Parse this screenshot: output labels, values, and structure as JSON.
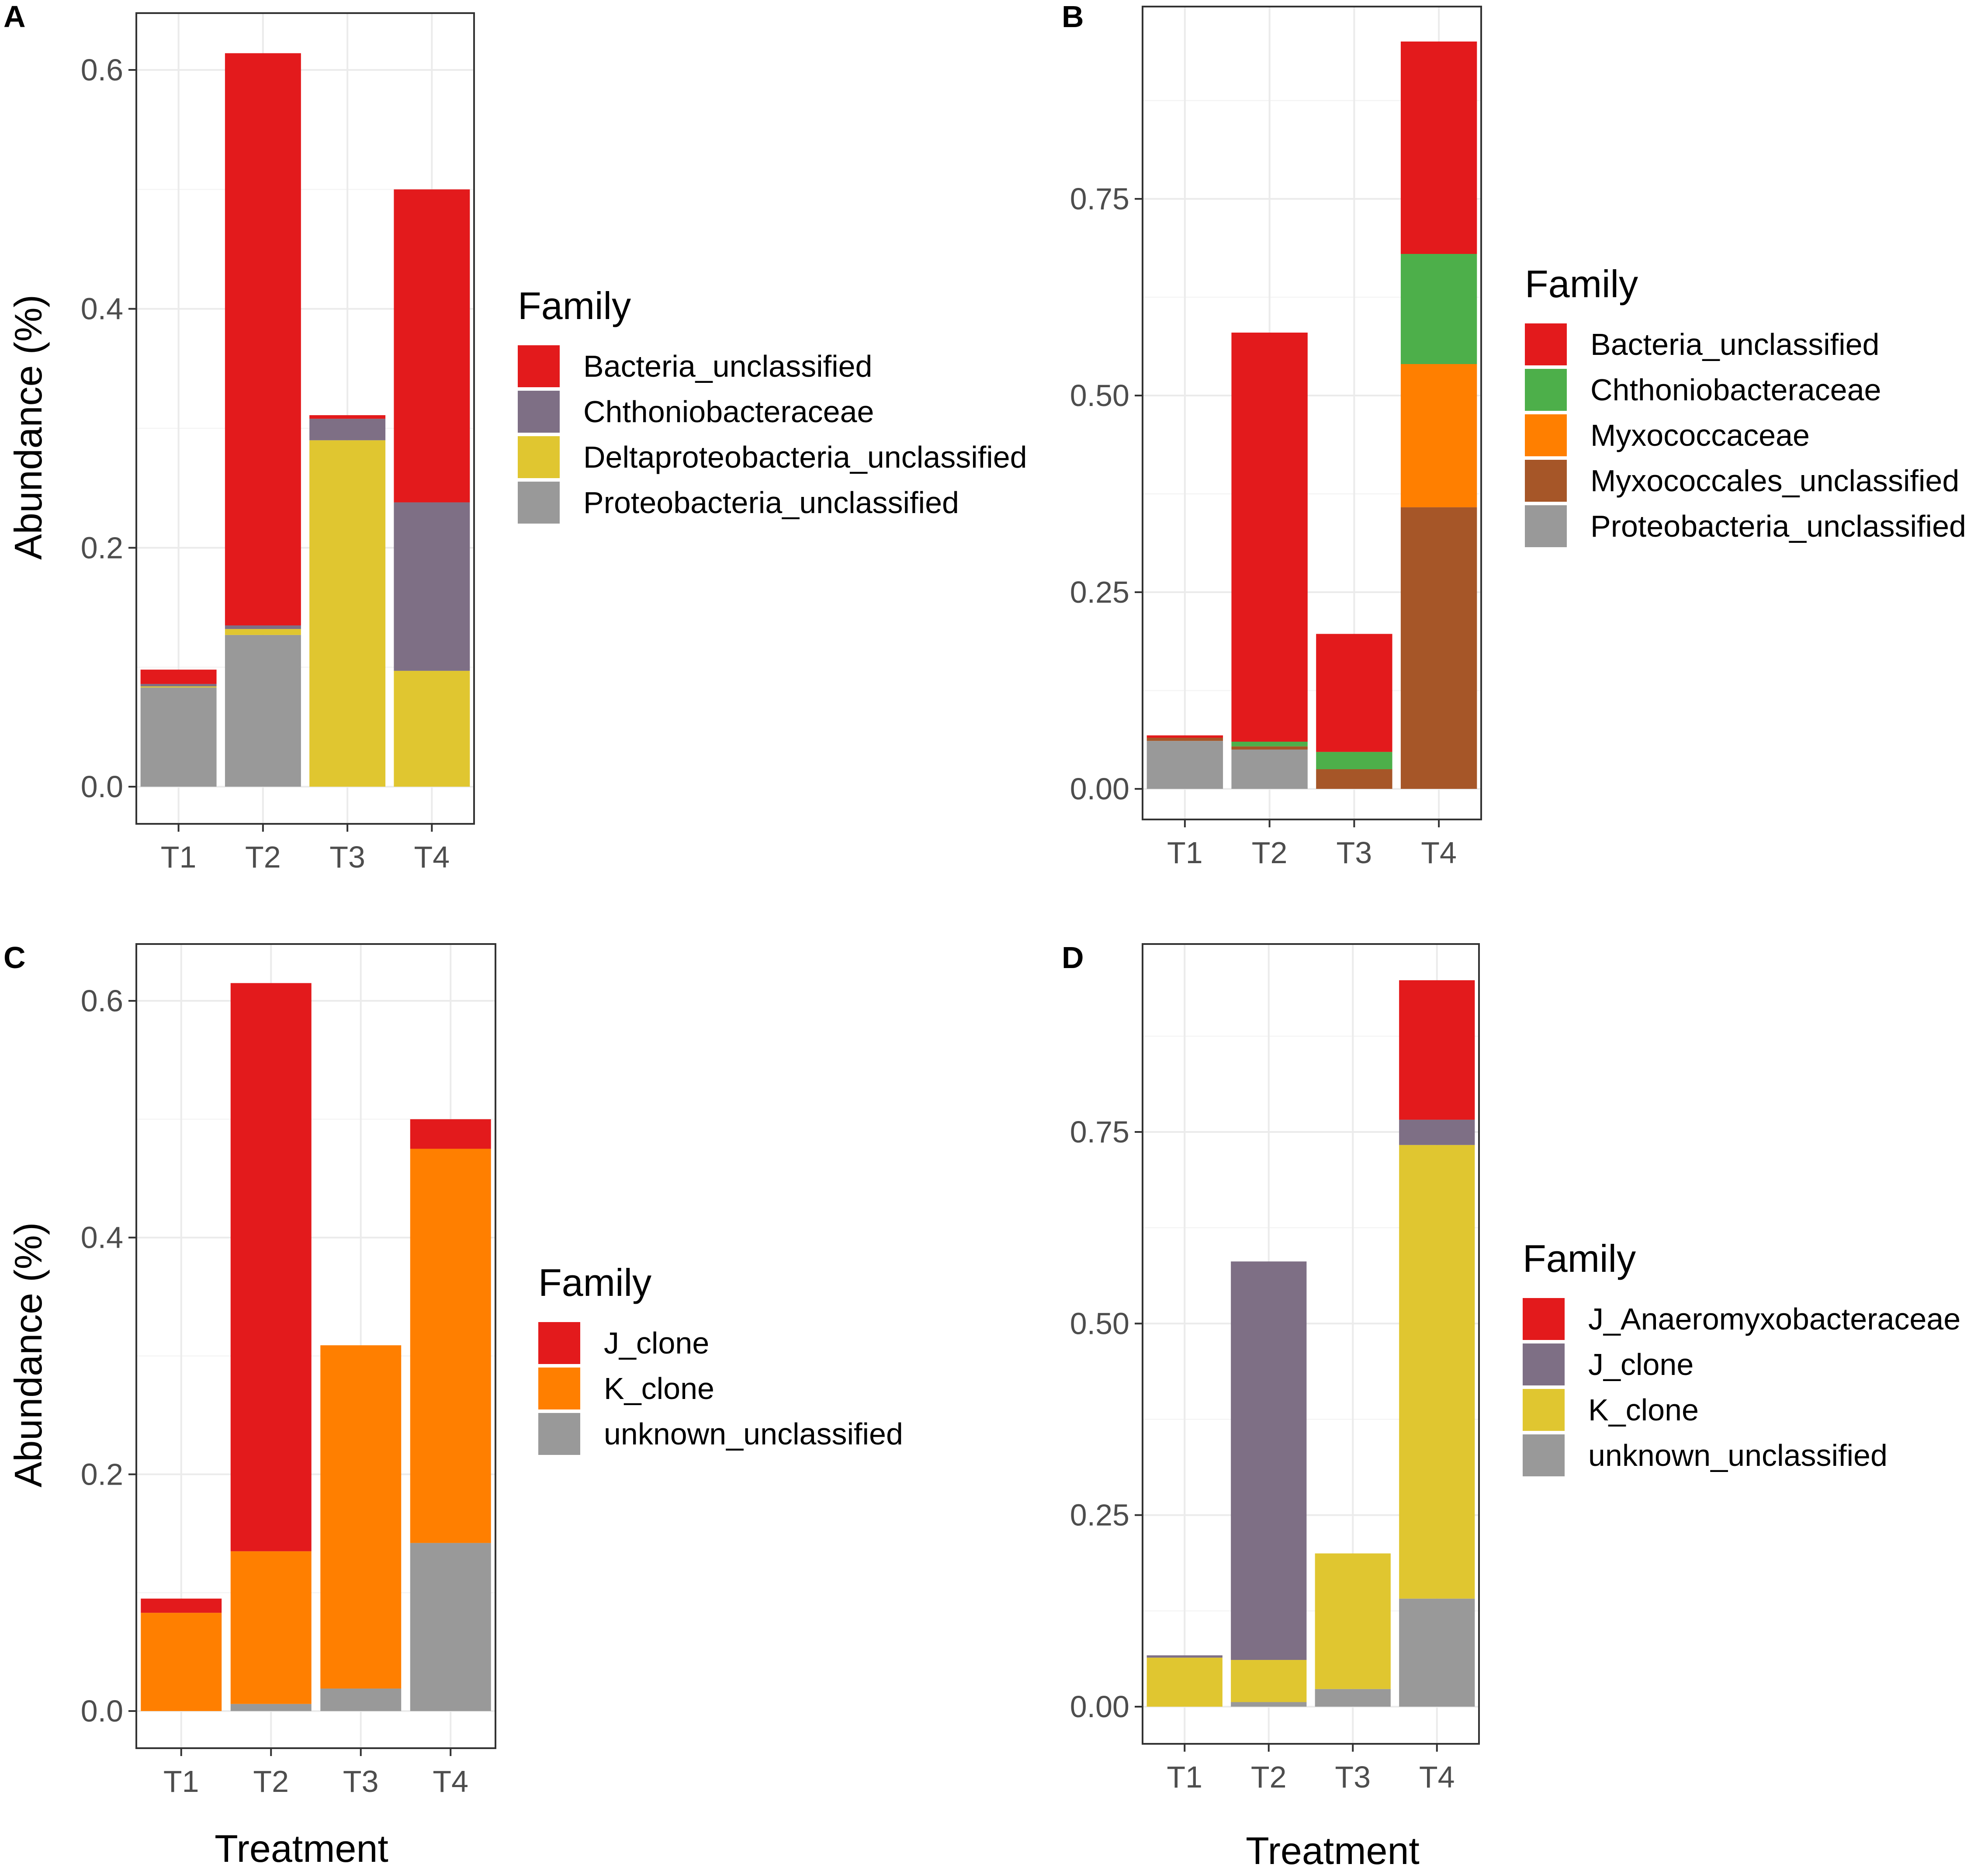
{
  "x_axis_title": "Treatment",
  "y_axis_title": "Abundance (%)",
  "chart_data": [
    {
      "panel": "A",
      "type": "bar",
      "stacked": true,
      "categories": [
        "T1",
        "T2",
        "T3",
        "T4"
      ],
      "ylim": [
        0,
        0.65
      ],
      "yticks": [
        0.0,
        0.2,
        0.4,
        0.6
      ],
      "ytick_labels": [
        "0.0",
        "0.2",
        "0.4",
        "0.6"
      ],
      "ylabel": "Abundance (%)",
      "xlabel": "",
      "legend_title": "Family",
      "series": [
        {
          "name": "Bacteria_unclassified",
          "color": "#e31a1c",
          "values": [
            0.012,
            0.479,
            0.003,
            0.262
          ]
        },
        {
          "name": "Chthoniobacteraceae",
          "color": "#7e6f85",
          "values": [
            0.002,
            0.003,
            0.018,
            0.141
          ]
        },
        {
          "name": "Deltaproteobacteria_unclassified",
          "color": "#e0c630",
          "values": [
            0.001,
            0.005,
            0.29,
            0.097
          ]
        },
        {
          "name": "Proteobacteria_unclassified",
          "color": "#999999",
          "values": [
            0.083,
            0.127,
            0.0,
            0.0
          ]
        }
      ]
    },
    {
      "panel": "B",
      "type": "bar",
      "stacked": true,
      "categories": [
        "T1",
        "T2",
        "T3",
        "T4"
      ],
      "ylim": [
        0,
        0.99
      ],
      "yticks": [
        0.0,
        0.25,
        0.5,
        0.75
      ],
      "ytick_labels": [
        "0.00",
        "0.25",
        "0.50",
        "0.75"
      ],
      "ylabel": "",
      "xlabel": "",
      "legend_title": "Family",
      "series": [
        {
          "name": "Bacteria_unclassified",
          "color": "#e31a1c",
          "values": [
            0.003,
            0.52,
            0.15,
            0.27
          ]
        },
        {
          "name": "Chthoniobacteraceae",
          "color": "#4daf4a",
          "values": [
            0.0,
            0.006,
            0.022,
            0.14
          ]
        },
        {
          "name": "Myxococcaceae",
          "color": "#ff7f00",
          "values": [
            0.0,
            0.0,
            0.0,
            0.182
          ]
        },
        {
          "name": "Myxococcales_unclassified",
          "color": "#a65628",
          "values": [
            0.004,
            0.004,
            0.025,
            0.358
          ]
        },
        {
          "name": "Proteobacteria_unclassified",
          "color": "#999999",
          "values": [
            0.061,
            0.05,
            0.0,
            0.0
          ]
        }
      ]
    },
    {
      "panel": "C",
      "type": "bar",
      "stacked": true,
      "categories": [
        "T1",
        "T2",
        "T3",
        "T4"
      ],
      "ylim": [
        0,
        0.65
      ],
      "yticks": [
        0.0,
        0.2,
        0.4,
        0.6
      ],
      "ytick_labels": [
        "0.0",
        "0.2",
        "0.4",
        "0.6"
      ],
      "ylabel": "Abundance (%)",
      "xlabel": "Treatment",
      "legend_title": "Family",
      "series": [
        {
          "name": "J_clone",
          "color": "#e31a1c",
          "values": [
            0.012,
            0.48,
            0.0,
            0.025
          ]
        },
        {
          "name": "K_clone",
          "color": "#ff7f00",
          "values": [
            0.083,
            0.129,
            0.29,
            0.333
          ]
        },
        {
          "name": "unknown_unclassified",
          "color": "#999999",
          "values": [
            0.0,
            0.006,
            0.019,
            0.142
          ]
        }
      ]
    },
    {
      "panel": "D",
      "type": "bar",
      "stacked": true,
      "categories": [
        "T1",
        "T2",
        "T3",
        "T4"
      ],
      "ylim": [
        0,
        0.99
      ],
      "yticks": [
        0.0,
        0.25,
        0.5,
        0.75
      ],
      "ytick_labels": [
        "0.00",
        "0.25",
        "0.50",
        "0.75"
      ],
      "ylabel": "",
      "xlabel": "Treatment",
      "legend_title": "Family",
      "series": [
        {
          "name": "J_Anaeromyxobacteraceae",
          "color": "#e31a1c",
          "values": [
            0.0,
            0.0,
            0.0,
            0.182
          ]
        },
        {
          "name": "J_clone",
          "color": "#7e6f85",
          "values": [
            0.003,
            0.52,
            0.0,
            0.033
          ]
        },
        {
          "name": "K_clone",
          "color": "#e0c630",
          "values": [
            0.064,
            0.055,
            0.177,
            0.592
          ]
        },
        {
          "name": "unknown_unclassified",
          "color": "#999999",
          "values": [
            0.0,
            0.006,
            0.023,
            0.141
          ]
        }
      ]
    }
  ]
}
